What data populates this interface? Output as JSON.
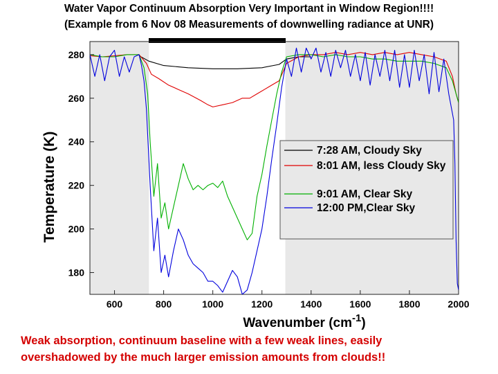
{
  "slide": {
    "title_line1": "Water Vapor Continuum Absorption Very Important in Window Region!!!!",
    "title_line2": "(Example from 6 Nov 08 Measurements of downwelling radiance at UNR)",
    "caption_line1": "Weak absorption, continuum baseline with a few weak lines, easily",
    "caption_line2": "overshadowed by the much larger emission amounts from clouds!!"
  },
  "chart_data": {
    "type": "line",
    "title": "",
    "xlabel": "Wavenumber (cm",
    "xlabel_superscript": "-1",
    "xlabel_suffix": ")",
    "ylabel": "Temperature (K)",
    "xlim": [
      500,
      2000
    ],
    "ylim": [
      170,
      286
    ],
    "xticks": [
      600,
      800,
      1000,
      1200,
      1400,
      1600,
      1800,
      2000
    ],
    "yticks": [
      180,
      200,
      220,
      240,
      260,
      280
    ],
    "shaded_x_ranges": [
      [
        500,
        740
      ],
      [
        1295,
        2000
      ]
    ],
    "shade_color": "#e8e8e8",
    "window_bar": [
      740,
      1295
    ],
    "legend_position": "right-middle",
    "grid": false,
    "series": [
      {
        "name": "7:28 AM, Cloudy Sky",
        "color": "#000000",
        "points": [
          [
            700,
            279.5
          ],
          [
            740,
            277
          ],
          [
            800,
            275
          ],
          [
            900,
            274
          ],
          [
            1000,
            273.5
          ],
          [
            1100,
            273.5
          ],
          [
            1200,
            274
          ],
          [
            1270,
            275.5
          ],
          [
            1300,
            278
          ],
          [
            1350,
            279
          ],
          [
            1400,
            279
          ]
        ]
      },
      {
        "name": "8:01 AM, less Cloudy Sky",
        "color": "#e00000",
        "points": [
          [
            500,
            279.5
          ],
          [
            550,
            279
          ],
          [
            600,
            279.5
          ],
          [
            650,
            280
          ],
          [
            700,
            280
          ],
          [
            730,
            276
          ],
          [
            750,
            271
          ],
          [
            780,
            269
          ],
          [
            820,
            266
          ],
          [
            860,
            264
          ],
          [
            900,
            262
          ],
          [
            950,
            259
          ],
          [
            980,
            257
          ],
          [
            1000,
            256
          ],
          [
            1040,
            257
          ],
          [
            1080,
            258
          ],
          [
            1120,
            260
          ],
          [
            1150,
            260
          ],
          [
            1180,
            262
          ],
          [
            1210,
            264
          ],
          [
            1240,
            266
          ],
          [
            1270,
            268
          ],
          [
            1300,
            276
          ],
          [
            1350,
            279
          ],
          [
            1400,
            280
          ],
          [
            1450,
            280
          ],
          [
            1500,
            281
          ],
          [
            1550,
            280
          ],
          [
            1600,
            281
          ],
          [
            1650,
            280
          ],
          [
            1700,
            281
          ],
          [
            1750,
            280
          ],
          [
            1800,
            281
          ],
          [
            1850,
            280
          ],
          [
            1900,
            279
          ],
          [
            1950,
            277
          ],
          [
            1975,
            270
          ],
          [
            1990,
            262
          ],
          [
            2000,
            258
          ]
        ]
      },
      {
        "name": "9:01 AM, Clear Sky",
        "color": "#00b000",
        "points": [
          [
            500,
            280
          ],
          [
            550,
            279
          ],
          [
            600,
            279
          ],
          [
            650,
            280
          ],
          [
            700,
            280
          ],
          [
            720,
            274
          ],
          [
            735,
            262
          ],
          [
            745,
            240
          ],
          [
            760,
            215
          ],
          [
            775,
            230
          ],
          [
            790,
            205
          ],
          [
            805,
            212
          ],
          [
            820,
            200
          ],
          [
            840,
            210
          ],
          [
            860,
            220
          ],
          [
            880,
            230
          ],
          [
            900,
            223
          ],
          [
            920,
            218
          ],
          [
            940,
            220
          ],
          [
            960,
            218
          ],
          [
            980,
            220
          ],
          [
            1000,
            221
          ],
          [
            1020,
            219
          ],
          [
            1040,
            222
          ],
          [
            1060,
            215
          ],
          [
            1080,
            210
          ],
          [
            1100,
            205
          ],
          [
            1120,
            200
          ],
          [
            1140,
            195
          ],
          [
            1160,
            198
          ],
          [
            1180,
            215
          ],
          [
            1200,
            225
          ],
          [
            1220,
            238
          ],
          [
            1240,
            250
          ],
          [
            1260,
            262
          ],
          [
            1280,
            272
          ],
          [
            1300,
            279
          ],
          [
            1350,
            280
          ],
          [
            1400,
            280
          ],
          [
            1450,
            279
          ],
          [
            1500,
            280
          ],
          [
            1550,
            279
          ],
          [
            1600,
            279
          ],
          [
            1650,
            278
          ],
          [
            1700,
            278
          ],
          [
            1750,
            277
          ],
          [
            1800,
            277
          ],
          [
            1850,
            277
          ],
          [
            1900,
            276
          ],
          [
            1950,
            274
          ],
          [
            1975,
            268
          ],
          [
            1990,
            262
          ],
          [
            2000,
            258
          ]
        ]
      },
      {
        "name": "12:00 PM,Clear Sky",
        "color": "#0000dd",
        "points": [
          [
            500,
            280
          ],
          [
            520,
            270
          ],
          [
            540,
            280
          ],
          [
            560,
            268
          ],
          [
            580,
            279
          ],
          [
            600,
            282
          ],
          [
            620,
            270
          ],
          [
            640,
            279
          ],
          [
            660,
            272
          ],
          [
            680,
            279
          ],
          [
            700,
            280
          ],
          [
            710,
            275
          ],
          [
            720,
            268
          ],
          [
            730,
            255
          ],
          [
            745,
            220
          ],
          [
            760,
            190
          ],
          [
            775,
            205
          ],
          [
            790,
            180
          ],
          [
            805,
            188
          ],
          [
            820,
            178
          ],
          [
            840,
            190
          ],
          [
            860,
            200
          ],
          [
            880,
            195
          ],
          [
            900,
            188
          ],
          [
            920,
            184
          ],
          [
            940,
            182
          ],
          [
            960,
            180
          ],
          [
            980,
            176
          ],
          [
            1000,
            176
          ],
          [
            1020,
            174
          ],
          [
            1040,
            171
          ],
          [
            1060,
            176
          ],
          [
            1080,
            181
          ],
          [
            1100,
            178
          ],
          [
            1120,
            170
          ],
          [
            1140,
            172
          ],
          [
            1160,
            180
          ],
          [
            1180,
            190
          ],
          [
            1200,
            200
          ],
          [
            1220,
            215
          ],
          [
            1240,
            232
          ],
          [
            1260,
            248
          ],
          [
            1280,
            265
          ],
          [
            1300,
            278
          ],
          [
            1320,
            270
          ],
          [
            1340,
            283
          ],
          [
            1360,
            272
          ],
          [
            1380,
            283
          ],
          [
            1400,
            278
          ],
          [
            1420,
            283
          ],
          [
            1440,
            272
          ],
          [
            1460,
            281
          ],
          [
            1480,
            270
          ],
          [
            1500,
            282
          ],
          [
            1520,
            274
          ],
          [
            1540,
            282
          ],
          [
            1560,
            270
          ],
          [
            1580,
            280
          ],
          [
            1600,
            268
          ],
          [
            1620,
            281
          ],
          [
            1640,
            266
          ],
          [
            1660,
            280
          ],
          [
            1680,
            270
          ],
          [
            1700,
            282
          ],
          [
            1720,
            268
          ],
          [
            1740,
            282
          ],
          [
            1760,
            265
          ],
          [
            1780,
            280
          ],
          [
            1800,
            265
          ],
          [
            1820,
            282
          ],
          [
            1840,
            268
          ],
          [
            1860,
            280
          ],
          [
            1880,
            262
          ],
          [
            1900,
            281
          ],
          [
            1920,
            263
          ],
          [
            1940,
            278
          ],
          [
            1960,
            262
          ],
          [
            1980,
            250
          ],
          [
            1985,
            230
          ],
          [
            1990,
            195
          ],
          [
            1995,
            175
          ],
          [
            2000,
            172
          ]
        ]
      }
    ]
  }
}
